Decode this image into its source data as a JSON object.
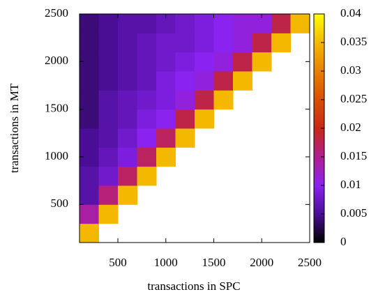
{
  "chart_data": {
    "type": "heatmap",
    "xlabel": "transactions in SPC",
    "ylabel": "transactions in MT",
    "x": [
      200,
      400,
      600,
      800,
      1000,
      1200,
      1400,
      1600,
      1800,
      2000,
      2200,
      2400
    ],
    "y": [
      200,
      400,
      600,
      800,
      1000,
      1200,
      1400,
      1600,
      1800,
      2000,
      2200,
      2400
    ],
    "z": [
      [
        0.035,
        null,
        null,
        null,
        null,
        null,
        null,
        null,
        null,
        null,
        null,
        null
      ],
      [
        0.014,
        0.035,
        null,
        null,
        null,
        null,
        null,
        null,
        null,
        null,
        null,
        null
      ],
      [
        0.006,
        0.016,
        0.035,
        null,
        null,
        null,
        null,
        null,
        null,
        null,
        null,
        null
      ],
      [
        0.006,
        0.008,
        0.017,
        0.035,
        null,
        null,
        null,
        null,
        null,
        null,
        null,
        null
      ],
      [
        0.005,
        0.007,
        0.009,
        0.017,
        0.035,
        null,
        null,
        null,
        null,
        null,
        null,
        null
      ],
      [
        0.005,
        0.006,
        0.008,
        0.01,
        0.017,
        0.035,
        null,
        null,
        null,
        null,
        null,
        null
      ],
      [
        0.004,
        0.006,
        0.007,
        0.009,
        0.01,
        0.018,
        0.035,
        null,
        null,
        null,
        null,
        null
      ],
      [
        0.004,
        0.006,
        0.007,
        0.008,
        0.009,
        0.011,
        0.018,
        0.035,
        null,
        null,
        null,
        null
      ],
      [
        0.004,
        0.005,
        0.006,
        0.007,
        0.009,
        0.01,
        0.011,
        0.018,
        0.035,
        null,
        null,
        null
      ],
      [
        0.004,
        0.005,
        0.006,
        0.007,
        0.008,
        0.009,
        0.01,
        0.011,
        0.018,
        0.035,
        null,
        null
      ],
      [
        0.004,
        0.005,
        0.006,
        0.007,
        0.008,
        0.008,
        0.009,
        0.01,
        0.011,
        0.018,
        0.035,
        null
      ],
      [
        0.004,
        0.005,
        0.006,
        0.006,
        0.007,
        0.008,
        0.009,
        0.01,
        0.011,
        0.011,
        0.018,
        0.035
      ]
    ],
    "xlim": [
      100,
      2500
    ],
    "xticks": [
      500,
      1000,
      1500,
      2000,
      2500
    ],
    "ylim": [
      100,
      2500
    ],
    "yticks": [
      500,
      1000,
      1500,
      2000,
      2500
    ],
    "clim": [
      0,
      0.04
    ],
    "cticks": [
      0,
      0.005,
      0.01,
      0.015,
      0.02,
      0.025,
      0.03,
      0.035,
      0.04
    ],
    "colormap": [
      "#000000",
      "#4a0e96",
      "#8a22f0",
      "#b01e90",
      "#c82818",
      "#d85000",
      "#e88000",
      "#f4b800",
      "#ffff00"
    ]
  }
}
